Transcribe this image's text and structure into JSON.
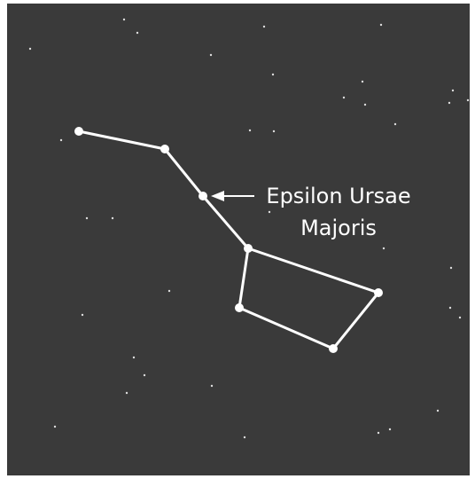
{
  "annotation": {
    "lines": [
      "Epsilon Ursae",
      "Majoris"
    ]
  }
}
